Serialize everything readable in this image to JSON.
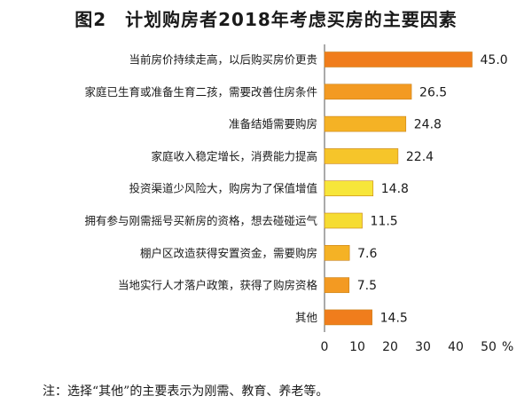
{
  "chart_data": {
    "type": "bar",
    "orientation": "horizontal",
    "title": "图2　计划购房者2018年考虑买房的主要因素",
    "categories": [
      "当前房价持续走高，以后购买房价更贵",
      "家庭已生育或准备生育二孩，需要改善住房条件",
      "准备结婚需要购房",
      "家庭收入稳定增长，消费能力提高",
      "投资渠道少风险大，购房为了保值增值",
      "拥有参与刚需摇号买新房的资格，想去碰碰运气",
      "棚户区改造获得安置资金，需要购房",
      "当地实行人才落户政策，获得了购房资格",
      "其他"
    ],
    "values": [
      45.0,
      26.5,
      24.8,
      22.4,
      14.8,
      11.5,
      7.6,
      7.5,
      14.5
    ],
    "value_labels": [
      "45.0",
      "26.5",
      "24.8",
      "22.4",
      "14.8",
      "11.5",
      "7.6",
      "7.5",
      "14.5"
    ],
    "bar_colors": [
      "#f07d1c",
      "#f39a22",
      "#f5b225",
      "#f6c52a",
      "#f7e63a",
      "#f6dc32",
      "#f5b225",
      "#f39a22",
      "#f07d1c"
    ],
    "xlim": [
      0,
      50
    ],
    "xticks": [
      "0",
      "10",
      "20",
      "30",
      "40",
      "50"
    ],
    "x_unit": "%",
    "xlabel": "",
    "ylabel": "",
    "grid": false,
    "legend": "none"
  },
  "footnote": "注：选择“其他”的主要表示为刚需、教育、养老等。"
}
